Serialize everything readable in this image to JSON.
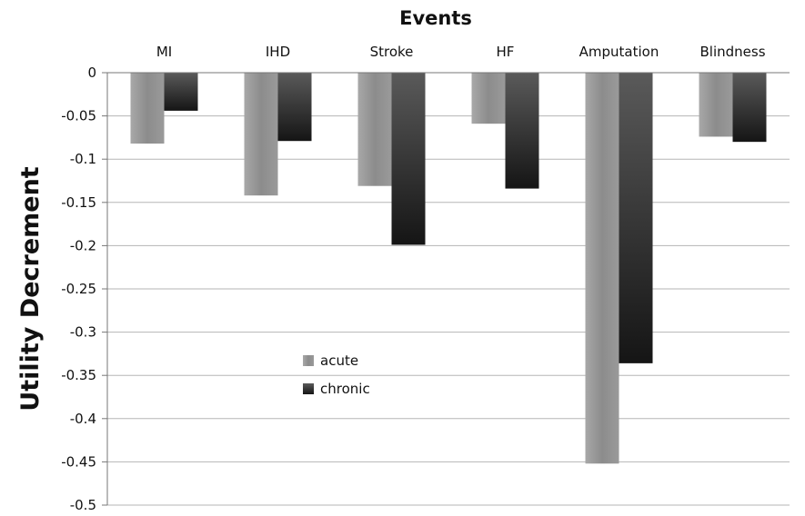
{
  "chart_data": {
    "type": "bar",
    "title": "Events",
    "xlabel": "",
    "ylabel": "Utility Decrement",
    "categories": [
      "MI",
      "IHD",
      "Stroke",
      "HF",
      "Amputation",
      "Blindness"
    ],
    "series": [
      {
        "name": "acute",
        "values": [
          -0.082,
          -0.142,
          -0.131,
          -0.059,
          -0.452,
          -0.074
        ],
        "color": "#8f8f8f"
      },
      {
        "name": "chronic",
        "values": [
          -0.044,
          -0.079,
          -0.199,
          -0.134,
          -0.336,
          -0.08
        ],
        "color": "#2a2a2a"
      }
    ],
    "ylim": [
      -0.5,
      0
    ],
    "yticks": [
      0,
      -0.05,
      -0.1,
      -0.15,
      -0.2,
      -0.25,
      -0.3,
      -0.35,
      -0.4,
      -0.45,
      -0.5
    ],
    "ytick_labels": [
      "0",
      "-0.05",
      "-0.1",
      "-0.15",
      "-0.2",
      "-0.25",
      "-0.3",
      "-0.35",
      "-0.4",
      "-0.45",
      "-0.5"
    ],
    "x_axis_position": "top",
    "grid": true,
    "legend": {
      "position": "center-left",
      "entries": [
        "acute",
        "chronic"
      ]
    }
  }
}
